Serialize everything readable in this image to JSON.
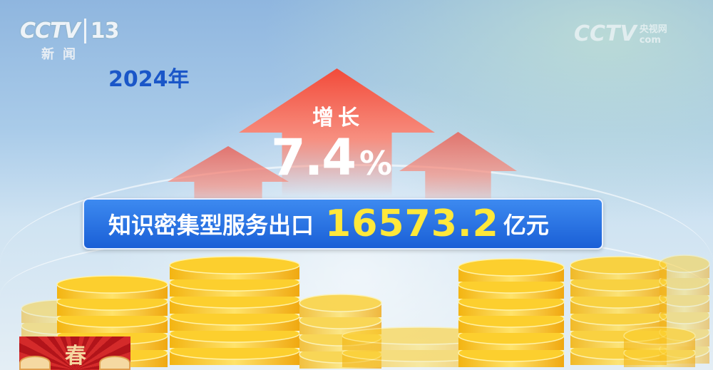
{
  "channel_logo": {
    "brand": "CCTV",
    "channel": "13",
    "name": "新闻"
  },
  "watermark": {
    "brand": "CCTV",
    "site": "央视网",
    "domain": "com"
  },
  "year": "2024年",
  "growth": {
    "label": "增长",
    "value": "7.4",
    "unit": "%"
  },
  "banner": {
    "label": "知识密集型服务出口",
    "value": "16573.2",
    "unit": "亿元"
  },
  "promo": {
    "character": "春"
  },
  "colors": {
    "banner": "#1a5fd6",
    "value": "#ffe83a",
    "arrow": "#f24b3a",
    "year": "#1a56c8",
    "coin": "#f8c21c"
  }
}
